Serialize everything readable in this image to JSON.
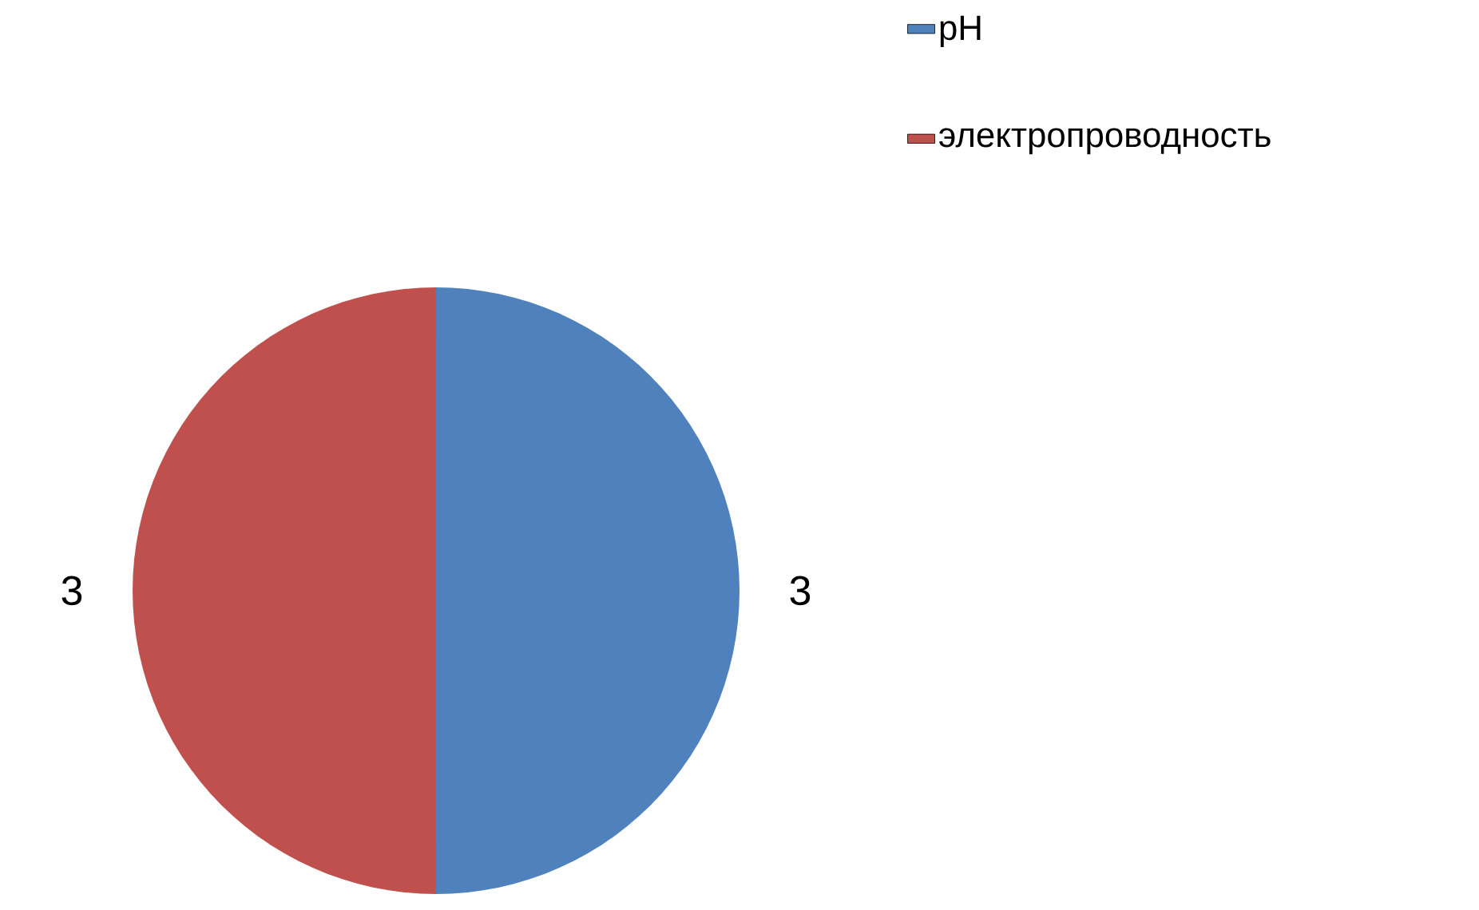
{
  "chart_data": {
    "type": "pie",
    "categories": [
      "pH",
      "электропроводность"
    ],
    "values": [
      3,
      3
    ],
    "colors": [
      "#4f81bd",
      "#c0504d"
    ],
    "data_labels": true,
    "legend": "top right"
  }
}
